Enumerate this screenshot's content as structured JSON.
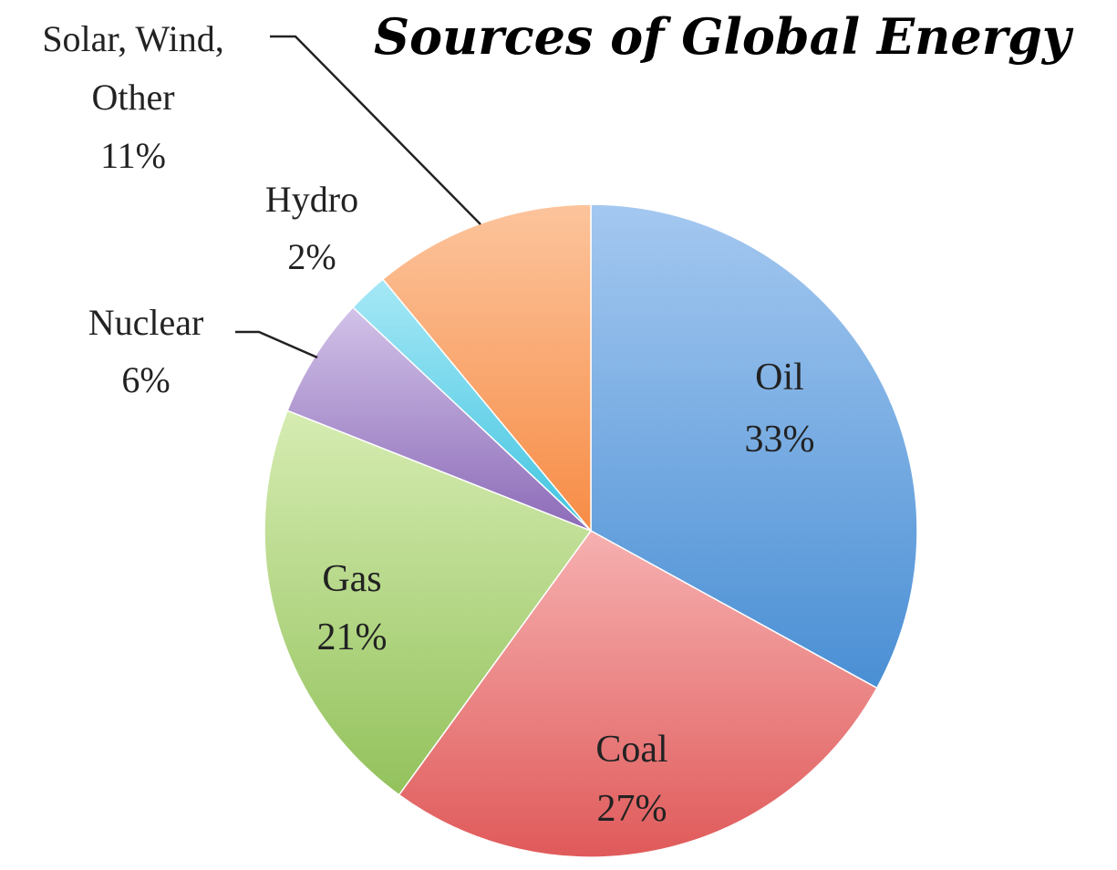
{
  "chart_data": {
    "type": "pie",
    "title": "Sources of Global Energy",
    "slices": [
      {
        "label": "Oil",
        "value": 33,
        "value_label": "33%",
        "color": "#4a8fd4",
        "color_light": "#a4c8f0"
      },
      {
        "label": "Coal",
        "value": 27,
        "value_label": "27%",
        "color": "#e05a5a",
        "color_light": "#f6b0b0"
      },
      {
        "label": "Gas",
        "value": 21,
        "value_label": "21%",
        "color": "#93c25c",
        "color_light": "#d6ecb2"
      },
      {
        "label": "Nuclear",
        "value": 6,
        "value_label": "6%",
        "color": "#8c6bb8",
        "color_light": "#d2c2e8"
      },
      {
        "label": "Hydro",
        "value": 2,
        "value_label": "2%",
        "color": "#40c4e0",
        "color_light": "#a6e8f6"
      },
      {
        "label": "Solar, Wind, Other",
        "value": 11,
        "value_label": "11%",
        "color": "#f78c46",
        "color_light": "#fcc49c"
      }
    ]
  }
}
